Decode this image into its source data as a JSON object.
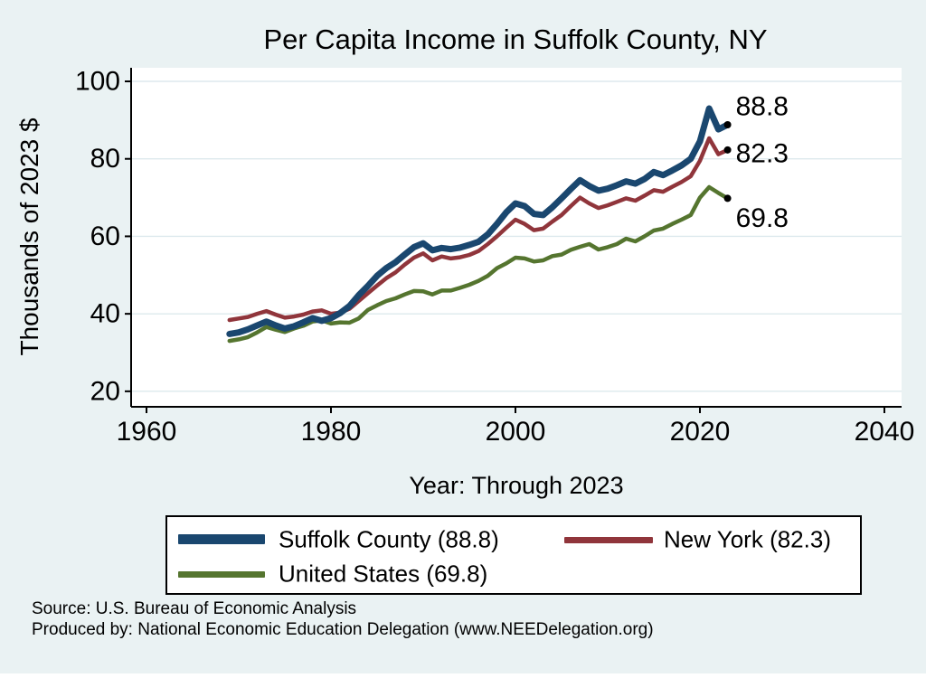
{
  "chart_data": {
    "type": "line",
    "title": "Per Capita Income in Suffolk County, NY",
    "xlabel": "Year: Through 2023",
    "ylabel": "Thousands of 2023 $",
    "x_ticks": [
      1960,
      1980,
      2000,
      2020,
      2040
    ],
    "y_ticks": [
      100,
      80,
      60,
      40,
      20
    ],
    "xlim": [
      1958.3,
      2041.9
    ],
    "ylim": [
      16,
      103.5
    ],
    "grid": true,
    "legend_position": "bottom",
    "x": [
      1969,
      1970,
      1971,
      1972,
      1973,
      1974,
      1975,
      1976,
      1977,
      1978,
      1979,
      1980,
      1981,
      1982,
      1983,
      1984,
      1985,
      1986,
      1987,
      1988,
      1989,
      1990,
      1991,
      1992,
      1993,
      1994,
      1995,
      1996,
      1997,
      1998,
      1999,
      2000,
      2001,
      2002,
      2003,
      2004,
      2005,
      2006,
      2007,
      2008,
      2009,
      2010,
      2011,
      2012,
      2013,
      2014,
      2015,
      2016,
      2017,
      2018,
      2019,
      2020,
      2021,
      2022,
      2023
    ],
    "series": [
      {
        "name": "Suffolk County",
        "legend_label": "Suffolk County (88.8)",
        "end_label": "88.8",
        "color": "#1a476f",
        "line_width": 7,
        "values": [
          34.8,
          35.2,
          36.0,
          37.0,
          38.0,
          37.0,
          36.2,
          36.8,
          37.8,
          38.9,
          38.2,
          38.9,
          40.2,
          42.0,
          44.8,
          47.2,
          49.8,
          51.8,
          53.3,
          55.3,
          57.2,
          58.2,
          56.4,
          57.0,
          56.7,
          57.1,
          57.8,
          58.6,
          60.5,
          63.2,
          66.2,
          68.5,
          67.8,
          65.8,
          65.5,
          67.5,
          69.8,
          72.2,
          74.5,
          73.0,
          71.8,
          72.3,
          73.2,
          74.2,
          73.6,
          74.8,
          76.6,
          75.8,
          77.0,
          78.3,
          80.0,
          84.5,
          93.0,
          87.6,
          88.8
        ]
      },
      {
        "name": "New York",
        "legend_label": "New York (82.3)",
        "end_label": "82.3",
        "color": "#90353b",
        "line_width": 4.5,
        "values": [
          38.4,
          38.8,
          39.2,
          40.0,
          40.7,
          39.8,
          39.0,
          39.3,
          39.8,
          40.6,
          40.9,
          40.0,
          40.3,
          41.3,
          43.3,
          45.3,
          47.3,
          49.2,
          50.7,
          52.7,
          54.5,
          55.6,
          53.8,
          54.8,
          54.3,
          54.6,
          55.2,
          56.2,
          58.0,
          60.0,
          62.2,
          64.3,
          63.2,
          61.6,
          62.0,
          63.8,
          65.5,
          67.8,
          70.0,
          68.5,
          67.3,
          68.0,
          68.9,
          69.8,
          69.2,
          70.5,
          71.9,
          71.5,
          72.8,
          74.0,
          75.5,
          79.5,
          85.3,
          81.2,
          82.3
        ]
      },
      {
        "name": "United States",
        "legend_label": "United States (69.8)",
        "end_label": "69.8",
        "color": "#55752f",
        "line_width": 4.5,
        "values": [
          33.0,
          33.4,
          34.0,
          35.2,
          36.6,
          35.9,
          35.3,
          36.2,
          36.9,
          38.0,
          38.3,
          37.5,
          37.8,
          37.7,
          38.8,
          41.0,
          42.2,
          43.3,
          44.0,
          45.0,
          45.9,
          45.8,
          45.0,
          46.0,
          46.0,
          46.7,
          47.5,
          48.5,
          49.8,
          51.8,
          53.0,
          54.5,
          54.3,
          53.5,
          53.8,
          54.9,
          55.3,
          56.5,
          57.3,
          58.0,
          56.6,
          57.2,
          58.0,
          59.4,
          58.7,
          60.0,
          61.5,
          62.0,
          63.2,
          64.3,
          65.5,
          70.0,
          72.7,
          71.2,
          69.8
        ]
      }
    ],
    "end_marker_color": "#000000"
  },
  "source": {
    "line1": "Source: U.S. Bureau of Economic Analysis",
    "line2": "Produced by: National Economic Education Delegation (www.NEEDelegation.org)"
  },
  "colors": {
    "background": "#eaf2f3",
    "plot_background": "#ffffff",
    "grid": "#dde9ed",
    "axis": "#000000",
    "title": "#1e3c60"
  }
}
